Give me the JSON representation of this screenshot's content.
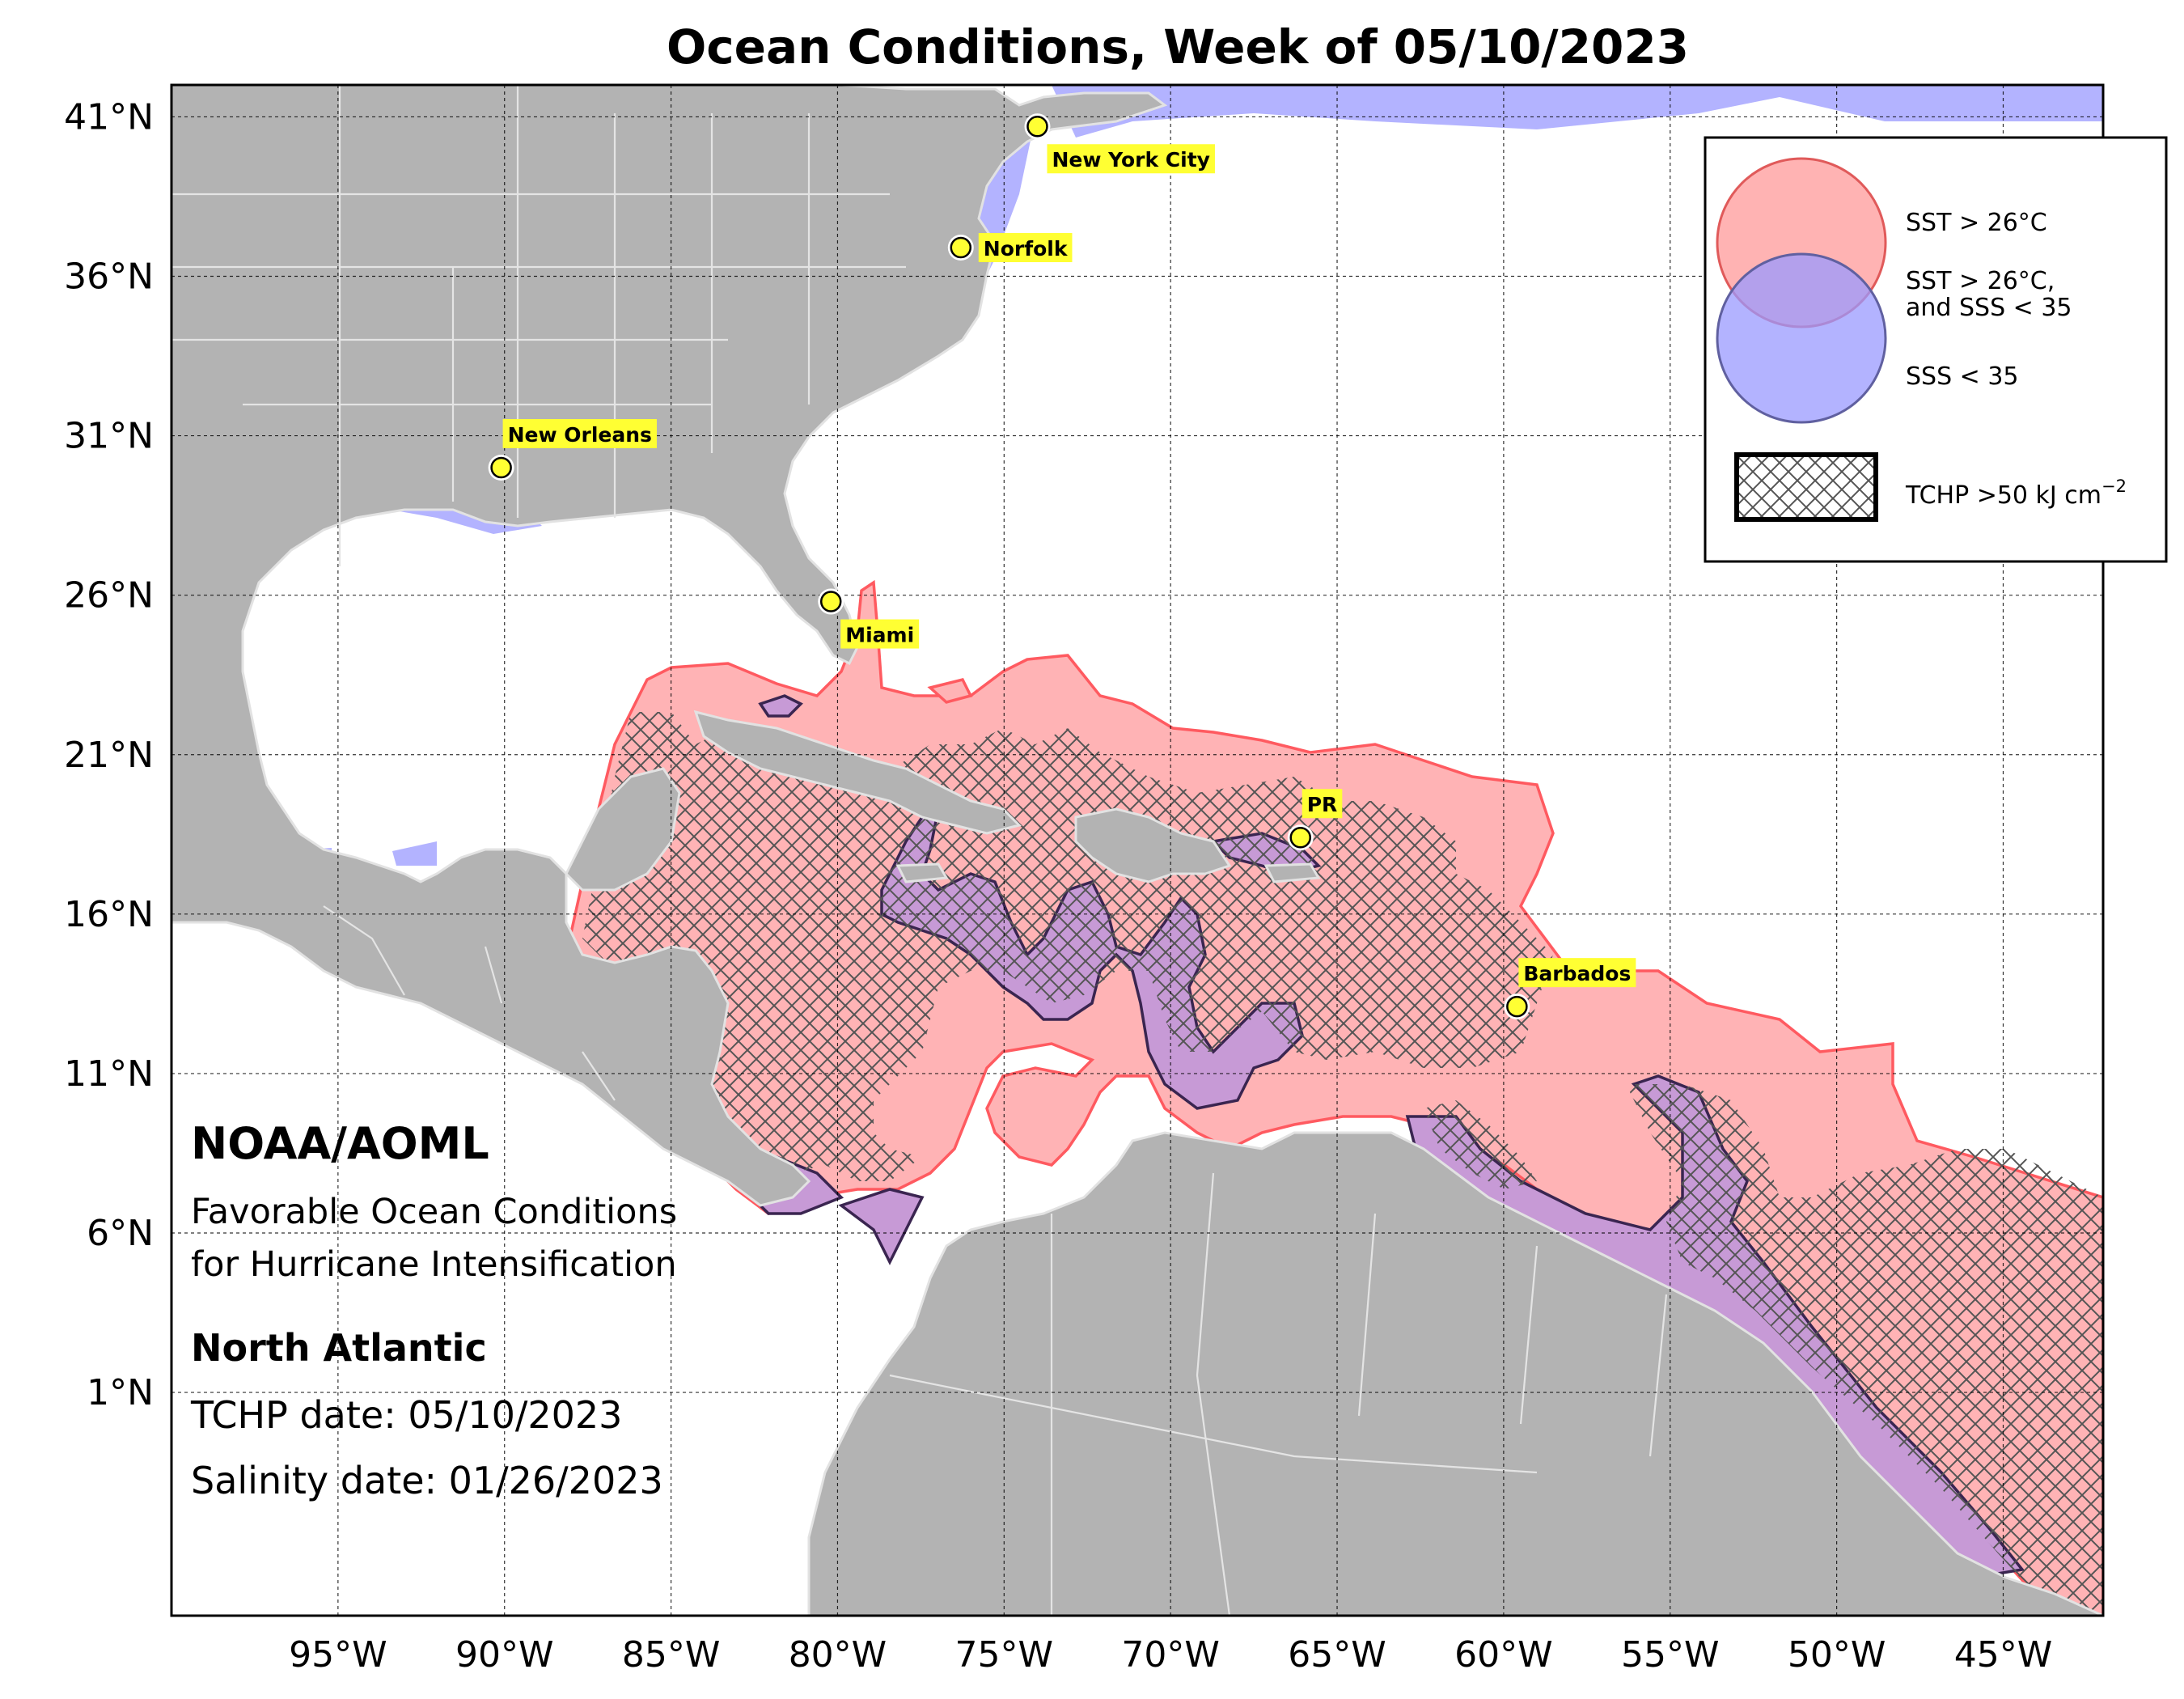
{
  "title": "Ocean Conditions, Week of 05/10/2023",
  "map": {
    "lon_range": [
      -100,
      -42
    ],
    "lat_range": [
      -6,
      42
    ],
    "lat_ticks": [
      {
        "value": 41,
        "label": "41°N"
      },
      {
        "value": 36,
        "label": "36°N"
      },
      {
        "value": 31,
        "label": "31°N"
      },
      {
        "value": 26,
        "label": "26°N"
      },
      {
        "value": 21,
        "label": "21°N"
      },
      {
        "value": 16,
        "label": "16°N"
      },
      {
        "value": 11,
        "label": "11°N"
      },
      {
        "value": 6,
        "label": "6°N"
      },
      {
        "value": 1,
        "label": "1°N"
      }
    ],
    "lon_ticks": [
      {
        "value": -95,
        "label": "95°W"
      },
      {
        "value": -90,
        "label": "90°W"
      },
      {
        "value": -85,
        "label": "85°W"
      },
      {
        "value": -80,
        "label": "80°W"
      },
      {
        "value": -75,
        "label": "75°W"
      },
      {
        "value": -70,
        "label": "70°W"
      },
      {
        "value": -65,
        "label": "65°W"
      },
      {
        "value": -60,
        "label": "60°W"
      },
      {
        "value": -55,
        "label": "55°W"
      },
      {
        "value": -50,
        "label": "50°W"
      },
      {
        "value": -45,
        "label": "45°W"
      }
    ],
    "colors": {
      "land": "#b3b3b3",
      "sst": "#ffb3b5",
      "sst_edge": "#ff5a60",
      "sss": "#b3b3ff",
      "both": "#c79ad6",
      "both_edge": "#3a2550",
      "city_marker": "#ffff33"
    }
  },
  "cities": [
    {
      "name": "New York City",
      "lon": -74.0,
      "lat": 40.7,
      "label_pos": "below-right"
    },
    {
      "name": "Norfolk",
      "lon": -76.3,
      "lat": 36.9,
      "label_pos": "right"
    },
    {
      "name": "New Orleans",
      "lon": -90.1,
      "lat": 30.0,
      "label_pos": "above-right"
    },
    {
      "name": "Miami",
      "lon": -80.2,
      "lat": 25.8,
      "label_pos": "below-right"
    },
    {
      "name": "PR",
      "lon": -66.1,
      "lat": 18.4,
      "label_pos": "above"
    },
    {
      "name": "Barbados",
      "lon": -59.6,
      "lat": 13.1,
      "label_pos": "above-right"
    }
  ],
  "legend": {
    "sst": "SST > 26°C",
    "both_line1": "SST > 26°C,",
    "both_line2": "and SSS < 35",
    "sss": "SSS < 35",
    "tchp": "TCHP >50 kJ cm",
    "tchp_exponent": "−2"
  },
  "info": {
    "org": "NOAA/AOML",
    "subtitle_line1": "Favorable Ocean Conditions",
    "subtitle_line2": "for Hurricane Intensification",
    "region": "North Atlantic",
    "tchp_date": "TCHP date: 05/10/2023",
    "salinity_date": "Salinity date: 01/26/2023"
  }
}
